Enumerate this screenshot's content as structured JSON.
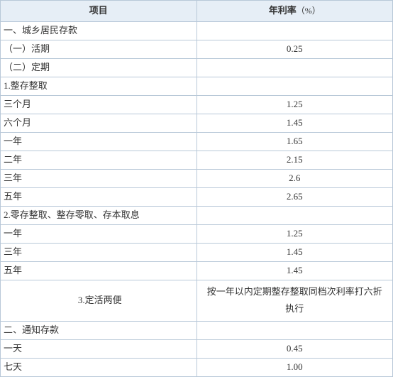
{
  "header": {
    "col1": "项目",
    "col2": "年利率",
    "col2_unit": "（%）"
  },
  "rows": [
    {
      "item": "一、城乡居民存款",
      "rate": "",
      "indent": 0
    },
    {
      "item": "（一）活期",
      "rate": "0.25",
      "indent": 1
    },
    {
      "item": "（二）定期",
      "rate": "",
      "indent": 1
    },
    {
      "item": "1.整存整取",
      "rate": "",
      "indent": 2
    },
    {
      "item": "三个月",
      "rate": "1.25",
      "indent": 3
    },
    {
      "item": "六个月",
      "rate": "1.45",
      "indent": 3
    },
    {
      "item": "一年",
      "rate": "1.65",
      "indent": 3
    },
    {
      "item": "二年",
      "rate": "2.15",
      "indent": 3
    },
    {
      "item": "三年",
      "rate": "2.6",
      "indent": 3
    },
    {
      "item": "五年",
      "rate": "2.65",
      "indent": 3
    },
    {
      "item": "2.零存整取、整存零取、存本取息",
      "rate": "",
      "indent": 2
    },
    {
      "item": "一年",
      "rate": "1.25",
      "indent": 3
    },
    {
      "item": "三年",
      "rate": "1.45",
      "indent": 3
    },
    {
      "item": "五年",
      "rate": "1.45",
      "indent": 3
    },
    {
      "item": "3.定活两便",
      "rate": "按一年以内定期整存整取同档次利率打六折执行",
      "indent": 2,
      "note": true
    },
    {
      "item": "二、通知存款",
      "rate": "",
      "indent": 0
    },
    {
      "item": "一天",
      "rate": "0.45",
      "indent": 3
    },
    {
      "item": "七天",
      "rate": "1.00",
      "indent": 3
    }
  ],
  "colors": {
    "border": "#b8c8d8",
    "header_bg": "#e6eef6",
    "text": "#333333",
    "bg": "#ffffff"
  },
  "col_widths": [
    "50%",
    "50%"
  ]
}
